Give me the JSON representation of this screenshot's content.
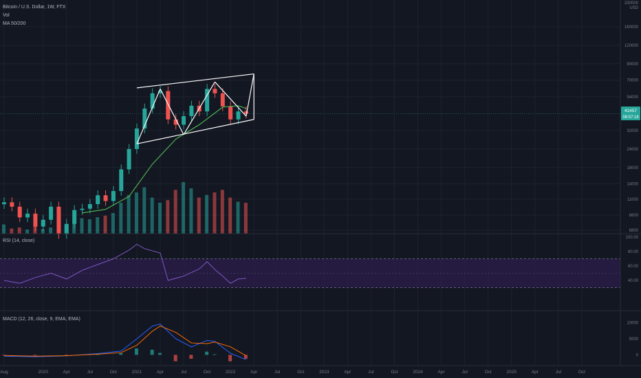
{
  "header": {
    "symbol": "Bitcoin / U.S. Dollar, 1W, FTX",
    "vol_label": "Vol",
    "ma_label": "MA 50/200"
  },
  "price_axis": {
    "currency": "USD",
    "top_tick": "230000",
    "ticks": [
      "160000",
      "120000",
      "90000",
      "70000",
      "54000",
      "32000",
      "24000",
      "18000",
      "14000",
      "11000",
      "8600",
      "6800"
    ],
    "current_price": "41457",
    "countdown": "08:57:18"
  },
  "rsi": {
    "label": "RSI (14, close)",
    "ticks": [
      "100.00",
      "80.00",
      "60.00",
      "40.00"
    ],
    "upper_band": 70,
    "middle": 50,
    "lower_band": 30
  },
  "macd": {
    "label": "MACD (12, 26, close, 9, EMA, EMA)",
    "ticks": [
      "10000",
      "5000",
      "0"
    ]
  },
  "time_axis": {
    "labels": [
      "Aug",
      "2020",
      "Apr",
      "Jul",
      "Oct",
      "2021",
      "Apr",
      "Jul",
      "Oct",
      "2022",
      "Apr",
      "Jul",
      "Oct",
      "2023",
      "Apr",
      "Jul",
      "Oct",
      "2024",
      "Apr",
      "Jul",
      "Oct",
      "2025",
      "Apr",
      "Jul",
      "Oct"
    ]
  },
  "colors": {
    "background": "#131722",
    "up": "#26a69a",
    "down": "#ef5350",
    "ma_line": "#4caf50",
    "rsi_line": "#7e57c2",
    "rsi_band": "#2a1d4a",
    "macd_line": "#2962ff",
    "signal_line": "#ff6d00",
    "trend_lines": "#ffffff"
  },
  "chart_data": [
    {
      "type": "candlestick",
      "title": "Bitcoin / U.S. Dollar, 1W, FTX",
      "scale": "log",
      "ylim": [
        6800,
        230000
      ],
      "x_range": [
        "2019-08",
        "2025-12"
      ],
      "series": [
        {
          "name": "Price",
          "points": [
            [
              "2019-08",
              10500
            ],
            [
              "2019-09",
              9800
            ],
            [
              "2019-10",
              8300
            ],
            [
              "2019-11",
              8800
            ],
            [
              "2019-12",
              7200
            ],
            [
              "2020-01",
              8000
            ],
            [
              "2020-02",
              9800
            ],
            [
              "2020-03",
              6400
            ],
            [
              "2020-04",
              7500
            ],
            [
              "2020-05",
              9300
            ],
            [
              "2020-06",
              9500
            ],
            [
              "2020-07",
              10200
            ],
            [
              "2020-08",
              11700
            ],
            [
              "2020-09",
              10700
            ],
            [
              "2020-10",
              12500
            ],
            [
              "2020-11",
              17500
            ],
            [
              "2020-12",
              24000
            ],
            [
              "2021-01",
              33000
            ],
            [
              "2021-02",
              45000
            ],
            [
              "2021-03",
              57000
            ],
            [
              "2021-04",
              59000
            ],
            [
              "2021-05",
              38000
            ],
            [
              "2021-06",
              35000
            ],
            [
              "2021-07",
              40000
            ],
            [
              "2021-08",
              47000
            ],
            [
              "2021-09",
              43000
            ],
            [
              "2021-10",
              61000
            ],
            [
              "2021-11",
              57000
            ],
            [
              "2021-12",
              46500
            ],
            [
              "2022-01",
              38000
            ],
            [
              "2022-02",
              43000
            ],
            [
              "2022-03",
              41457
            ]
          ]
        },
        {
          "name": "MA 50",
          "points": [
            [
              "2020-06",
              8900
            ],
            [
              "2020-09",
              9400
            ],
            [
              "2020-12",
              11500
            ],
            [
              "2021-03",
              19000
            ],
            [
              "2021-06",
              28000
            ],
            [
              "2021-09",
              35000
            ],
            [
              "2021-12",
              46000
            ],
            [
              "2022-02",
              47000
            ],
            [
              "2022-03",
              45000
            ]
          ]
        }
      ],
      "volume": [
        18,
        10,
        12,
        8,
        15,
        9,
        12,
        20,
        16,
        25,
        30,
        28,
        32,
        35,
        40,
        60,
        75,
        80,
        90,
        70,
        60,
        65,
        85,
        100,
        88,
        70,
        75,
        80,
        85,
        70,
        62,
        60
      ]
    },
    {
      "type": "line",
      "title": "RSI (14, close)",
      "ylim": [
        0,
        100
      ],
      "series": [
        {
          "name": "RSI",
          "points": [
            [
              "2019-08",
              40
            ],
            [
              "2019-10",
              36
            ],
            [
              "2019-12",
              44
            ],
            [
              "2020-02",
              50
            ],
            [
              "2020-04",
              42
            ],
            [
              "2020-06",
              54
            ],
            [
              "2020-08",
              62
            ],
            [
              "2020-10",
              70
            ],
            [
              "2020-12",
              82
            ],
            [
              "2021-01",
              90
            ],
            [
              "2021-02",
              84
            ],
            [
              "2021-04",
              78
            ],
            [
              "2021-05",
              40
            ],
            [
              "2021-07",
              46
            ],
            [
              "2021-09",
              56
            ],
            [
              "2021-10",
              66
            ],
            [
              "2021-11",
              55
            ],
            [
              "2021-12",
              46
            ],
            [
              "2022-01",
              36
            ],
            [
              "2022-02",
              42
            ],
            [
              "2022-03",
              43
            ]
          ]
        }
      ]
    },
    {
      "type": "bar",
      "title": "MACD (12, 26, close, 9, EMA, EMA)",
      "ylim": [
        -2500,
        12500
      ],
      "series": [
        {
          "name": "MACD",
          "points": [
            [
              "2019-08",
              -400
            ],
            [
              "2019-12",
              -600
            ],
            [
              "2020-04",
              -300
            ],
            [
              "2020-08",
              400
            ],
            [
              "2020-11",
              1200
            ],
            [
              "2021-01",
              5000
            ],
            [
              "2021-03",
              9000
            ],
            [
              "2021-04",
              9600
            ],
            [
              "2021-06",
              5000
            ],
            [
              "2021-08",
              2500
            ],
            [
              "2021-10",
              4500
            ],
            [
              "2021-11",
              4200
            ],
            [
              "2022-01",
              500
            ],
            [
              "2022-03",
              -1500
            ]
          ]
        },
        {
          "name": "Signal",
          "points": [
            [
              "2019-08",
              -200
            ],
            [
              "2019-12",
              -400
            ],
            [
              "2020-04",
              -250
            ],
            [
              "2020-08",
              200
            ],
            [
              "2020-11",
              700
            ],
            [
              "2021-01",
              3000
            ],
            [
              "2021-03",
              7400
            ],
            [
              "2021-04",
              9000
            ],
            [
              "2021-06",
              7000
            ],
            [
              "2021-08",
              3700
            ],
            [
              "2021-10",
              3500
            ],
            [
              "2021-11",
              4000
            ],
            [
              "2022-01",
              2500
            ],
            [
              "2022-03",
              -300
            ]
          ]
        }
      ]
    }
  ]
}
